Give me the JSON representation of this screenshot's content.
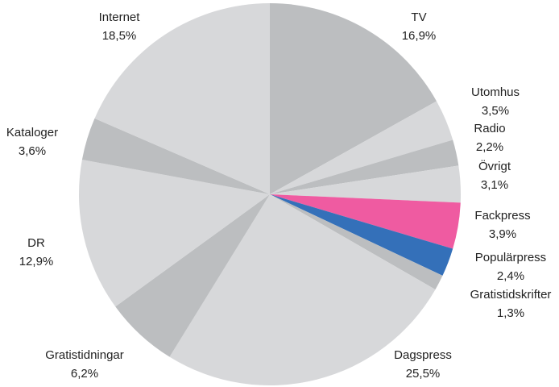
{
  "chart_data": {
    "type": "pie",
    "categories": [
      "TV",
      "Utomhus",
      "Radio",
      "Övrigt",
      "Fackpress",
      "Populärpress",
      "Gratistidskrifter",
      "Dagspress",
      "Gratistidningar",
      "DR",
      "Kataloger",
      "Internet"
    ],
    "values": [
      16.9,
      3.5,
      2.2,
      3.1,
      3.9,
      2.4,
      1.3,
      25.5,
      6.2,
      12.9,
      3.6,
      18.5
    ],
    "value_labels": [
      "16,9%",
      "3,5%",
      "2,2%",
      "3,1%",
      "3,9%",
      "2,4%",
      "1,3%",
      "25,5%",
      "6,2%",
      "12,9%",
      "3,6%",
      "18,5%"
    ],
    "colors": [
      "#bcbec0",
      "#d7d8da",
      "#bcbec0",
      "#d7d8da",
      "#ef5ba1",
      "#3470b9",
      "#bcbec0",
      "#d7d8da",
      "#bcbec0",
      "#d7d8da",
      "#bcbec0",
      "#d7d8da"
    ]
  }
}
